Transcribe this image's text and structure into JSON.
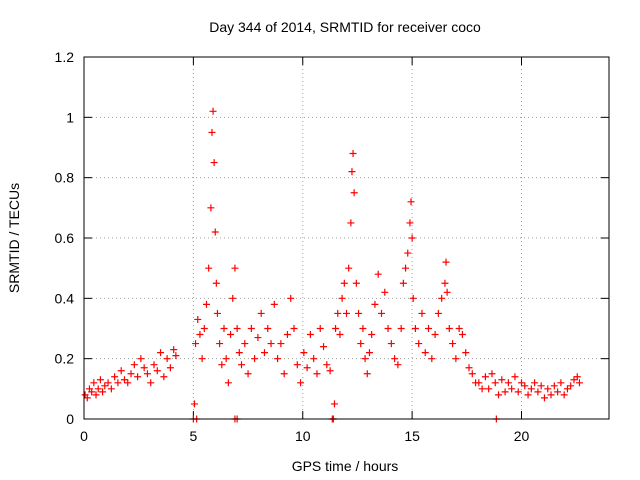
{
  "chart_data": {
    "type": "scatter",
    "title": "Day 344 of 2014, SRMTID for receiver coco",
    "xlabel": "GPS time / hours",
    "ylabel": "SRMTID / TECUs",
    "xlim": [
      0,
      24
    ],
    "ylim": [
      0,
      1.2
    ],
    "x_ticks": [
      0,
      5,
      10,
      15,
      20
    ],
    "y_ticks": [
      0,
      0.2,
      0.4,
      0.6,
      0.8,
      1,
      1.2
    ],
    "x_tick_labels": [
      "0",
      "5",
      "10",
      "15",
      "20"
    ],
    "y_tick_labels": [
      "0",
      "0.2",
      "0.4",
      "0.6",
      "0.8",
      "1",
      "1.2"
    ],
    "grid": true,
    "marker": "+",
    "series": [
      {
        "name": "SRMTID",
        "color": "#ff0000",
        "x": [
          0.05,
          0.15,
          0.25,
          0.35,
          0.45,
          0.55,
          0.65,
          0.75,
          0.85,
          0.95,
          1.1,
          1.25,
          1.4,
          1.55,
          1.7,
          1.85,
          2.0,
          2.15,
          2.3,
          2.45,
          2.6,
          2.75,
          2.9,
          3.05,
          3.2,
          3.35,
          3.5,
          3.65,
          3.8,
          3.95,
          4.1,
          4.2,
          5.1,
          5.2,
          5.3,
          5.4,
          5.5,
          5.6,
          5.7,
          5.8,
          5.85,
          5.9,
          5.95,
          6.0,
          6.05,
          6.1,
          6.2,
          6.3,
          6.4,
          6.5,
          6.6,
          6.7,
          6.8,
          6.9,
          7.0,
          7.1,
          7.2,
          7.35,
          7.5,
          7.65,
          7.8,
          7.95,
          8.1,
          8.25,
          8.4,
          8.55,
          8.7,
          8.85,
          9.0,
          9.15,
          9.3,
          9.45,
          9.6,
          9.75,
          9.9,
          10.05,
          10.2,
          10.35,
          10.5,
          10.65,
          10.8,
          10.95,
          11.1,
          11.25,
          11.5,
          11.6,
          11.7,
          11.8,
          11.9,
          12.0,
          12.1,
          12.2,
          12.25,
          12.3,
          12.35,
          12.45,
          12.55,
          12.65,
          12.75,
          12.85,
          12.95,
          13.05,
          13.15,
          13.3,
          13.45,
          13.6,
          13.75,
          13.9,
          14.05,
          14.2,
          14.35,
          14.5,
          14.6,
          14.7,
          14.8,
          14.9,
          14.95,
          15.0,
          15.05,
          15.15,
          15.3,
          15.45,
          15.6,
          15.75,
          15.9,
          16.05,
          16.2,
          16.35,
          16.5,
          16.55,
          16.6,
          16.7,
          16.85,
          17.0,
          17.15,
          17.3,
          17.45,
          17.6,
          17.75,
          17.9,
          18.05,
          18.2,
          18.35,
          18.5,
          18.65,
          18.8,
          18.95,
          19.1,
          19.25,
          19.4,
          19.55,
          19.7,
          19.85,
          20.0,
          20.15,
          20.3,
          20.45,
          20.6,
          20.75,
          20.9,
          21.05,
          21.2,
          21.35,
          21.5,
          21.65,
          21.8,
          21.95,
          22.1,
          22.25,
          22.4,
          22.55,
          22.65,
          5.0,
          5.05,
          6.9,
          7.0,
          11.35,
          11.45,
          18.85,
          5.15,
          11.4
        ],
        "y": [
          0.08,
          0.07,
          0.1,
          0.09,
          0.12,
          0.08,
          0.1,
          0.13,
          0.09,
          0.11,
          0.12,
          0.1,
          0.14,
          0.12,
          0.16,
          0.13,
          0.12,
          0.15,
          0.18,
          0.14,
          0.2,
          0.17,
          0.15,
          0.12,
          0.18,
          0.16,
          0.22,
          0.14,
          0.2,
          0.17,
          0.23,
          0.21,
          0.25,
          0.33,
          0.28,
          0.2,
          0.3,
          0.38,
          0.5,
          0.7,
          0.95,
          1.02,
          0.85,
          0.62,
          0.45,
          0.35,
          0.25,
          0.18,
          0.3,
          0.2,
          0.12,
          0.28,
          0.4,
          0.5,
          0.3,
          0.22,
          0.18,
          0.25,
          0.15,
          0.3,
          0.2,
          0.27,
          0.35,
          0.22,
          0.3,
          0.25,
          0.38,
          0.2,
          0.25,
          0.15,
          0.28,
          0.4,
          0.3,
          0.18,
          0.12,
          0.22,
          0.17,
          0.28,
          0.2,
          0.15,
          0.3,
          0.24,
          0.18,
          0.16,
          0.3,
          0.35,
          0.28,
          0.4,
          0.45,
          0.35,
          0.5,
          0.65,
          0.82,
          0.88,
          0.75,
          0.45,
          0.35,
          0.25,
          0.3,
          0.2,
          0.15,
          0.22,
          0.28,
          0.38,
          0.48,
          0.35,
          0.42,
          0.3,
          0.25,
          0.2,
          0.18,
          0.3,
          0.45,
          0.5,
          0.55,
          0.65,
          0.72,
          0.6,
          0.4,
          0.3,
          0.25,
          0.35,
          0.22,
          0.3,
          0.2,
          0.28,
          0.35,
          0.4,
          0.45,
          0.52,
          0.42,
          0.3,
          0.25,
          0.2,
          0.3,
          0.28,
          0.22,
          0.17,
          0.15,
          0.12,
          0.12,
          0.1,
          0.14,
          0.1,
          0.15,
          0.12,
          0.08,
          0.13,
          0.09,
          0.12,
          0.1,
          0.14,
          0.09,
          0.12,
          0.11,
          0.08,
          0.1,
          0.12,
          0.09,
          0.11,
          0.07,
          0.1,
          0.08,
          0.11,
          0.09,
          0.12,
          0.08,
          0.1,
          0.11,
          0.13,
          0.14,
          0.12,
          0.0,
          0.05,
          0.0,
          0.0,
          0.0,
          0.05,
          0.0,
          0.0,
          0.0
        ]
      }
    ]
  },
  "colors": {
    "series": "#ff0000",
    "grid": "#a0a0a0",
    "axis": "#000000"
  }
}
